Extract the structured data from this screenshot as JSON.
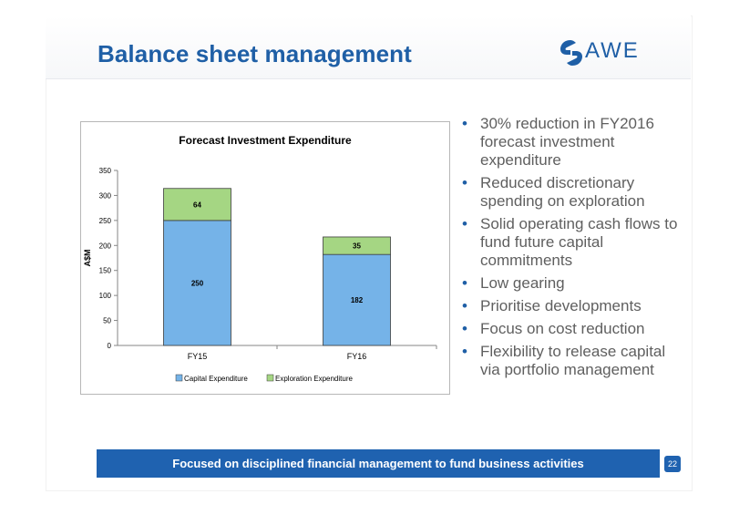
{
  "slide": {
    "title": "Balance sheet management",
    "logo_text": "AWE",
    "page_number": "22",
    "footer_text": "Focused on disciplined financial management to fund business activities",
    "accent_color": "#1f5fa6",
    "footer_color": "#1f62b0"
  },
  "bullets": [
    "30% reduction in FY2016 forecast investment expenditure",
    "Reduced discretionary spending on exploration",
    "Solid operating cash flows to fund future capital commitments",
    "Low gearing",
    "Prioritise developments",
    "Focus on cost reduction",
    "Flexibility to release capital via portfolio management"
  ],
  "chart_data": {
    "type": "bar",
    "stacked": true,
    "title": "Forecast Investment Expenditure",
    "xlabel": "",
    "ylabel": "A$M",
    "categories": [
      "FY15",
      "FY16"
    ],
    "series": [
      {
        "name": "Capital Expenditure",
        "values": [
          250,
          182
        ],
        "color": "#75b3e8"
      },
      {
        "name": "Exploration Expenditure",
        "values": [
          64,
          35
        ],
        "color": "#a5d683"
      }
    ],
    "ylim": [
      0,
      350
    ],
    "yticks": [
      0,
      50,
      100,
      150,
      200,
      250,
      300,
      350
    ],
    "grid": false,
    "legend": "bottom"
  }
}
